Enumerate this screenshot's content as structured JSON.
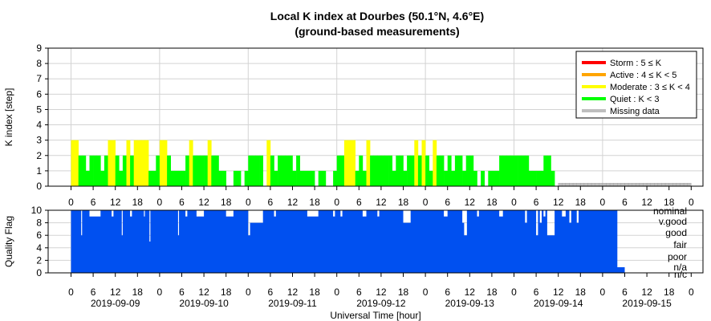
{
  "chart_data": [
    {
      "type": "bar",
      "title": "Local K index at Dourbes (50.1°N, 4.6°E)",
      "subtitle": "(ground-based measurements)",
      "ylabel": "K index [step]",
      "ylim": [
        0,
        9
      ],
      "yticks": [
        "0",
        "1",
        "2",
        "3",
        "4",
        "5",
        "6",
        "7",
        "8",
        "9"
      ],
      "x_tick_labels": [
        "0",
        "6",
        "12",
        "18"
      ],
      "grid": true,
      "legend": {
        "placement": "top-right",
        "entries": [
          {
            "label": "Storm : 5 ≤ K",
            "color": "#ff0000"
          },
          {
            "label": "Active : 4 ≤ K < 5",
            "color": "#ffa500"
          },
          {
            "label": "Moderate : 3 ≤ K < 4",
            "color": "#ffff00"
          },
          {
            "label": "Quiet : K < 3",
            "color": "#00ff00"
          },
          {
            "label": "Missing data",
            "color": "#bebebe"
          }
        ]
      },
      "bar_width_hours": 1,
      "series": [
        {
          "name": "K index",
          "start": "2019-09-09 00:00",
          "values": [
            3,
            3,
            2,
            2,
            1,
            2,
            2,
            2,
            1,
            2,
            3,
            3,
            2,
            1,
            2,
            3,
            2,
            3,
            3,
            3,
            3,
            1,
            1,
            2,
            3,
            3,
            2,
            1,
            1,
            1,
            1,
            2,
            3,
            2,
            2,
            2,
            2,
            3,
            2,
            2,
            1,
            1,
            0,
            0,
            1,
            1,
            0,
            1,
            2,
            2,
            2,
            2,
            0,
            3,
            2,
            1,
            2,
            2,
            2,
            2,
            1,
            2,
            1,
            1,
            1,
            1,
            0,
            1,
            1,
            0,
            0,
            1,
            2,
            2,
            3,
            3,
            3,
            1,
            2,
            1,
            3,
            2,
            2,
            2,
            2,
            2,
            2,
            1,
            2,
            2,
            1,
            2,
            2,
            3,
            2,
            3,
            2,
            1,
            3,
            2,
            2,
            1,
            2,
            1,
            2,
            2,
            1,
            2,
            2,
            1,
            0,
            1,
            0,
            1,
            1,
            1,
            2,
            2,
            2,
            2,
            2,
            2,
            2,
            2,
            1,
            1,
            1,
            1,
            2,
            2,
            1
          ]
        }
      ],
      "missing": {
        "label": "Missing data",
        "from": "2019-09-14 12:00",
        "to": "2019-09-15 24:00",
        "value": 0.2
      }
    },
    {
      "type": "area",
      "ylabel": "Quality Flag",
      "ylim": [
        0,
        10
      ],
      "yticks": [
        "0",
        "2",
        "4",
        "6",
        "8",
        "10"
      ],
      "xlabel": "Universal Time [hour]",
      "x_tick_labels": [
        "0",
        "6",
        "12",
        "18"
      ],
      "date_labels": [
        "2019-09-09",
        "2019-09-10",
        "2019-09-11",
        "2019-09-12",
        "2019-09-13",
        "2019-09-14",
        "2019-09-15"
      ],
      "quality_labels": [
        "nominal",
        "v.good",
        "good",
        "fair",
        "poor",
        "n/a",
        "n/c"
      ],
      "grid": true,
      "fill_color": "#0050f0",
      "resolution": "15 min",
      "start": "2019-09-09 00:00",
      "end_of_data": "2019-09-15 04:00",
      "value_before_dips": 10,
      "after_end_value": 0.9,
      "dips": [
        {
          "from": "2019-09-09 02:45",
          "to": "2019-09-09 03:00",
          "value": 6
        },
        {
          "from": "2019-09-09 05:00",
          "to": "2019-09-09 08:00",
          "value": 9
        },
        {
          "from": "2019-09-09 11:00",
          "to": "2019-09-09 11:30",
          "value": 9
        },
        {
          "from": "2019-09-09 13:45",
          "to": "2019-09-09 14:00",
          "value": 6
        },
        {
          "from": "2019-09-09 16:00",
          "to": "2019-09-09 16:30",
          "value": 9
        },
        {
          "from": "2019-09-09 19:45",
          "to": "2019-09-09 20:00",
          "value": 9
        },
        {
          "from": "2019-09-09 21:15",
          "to": "2019-09-09 21:30",
          "value": 5
        },
        {
          "from": "2019-09-10 05:00",
          "to": "2019-09-10 05:15",
          "value": 6
        },
        {
          "from": "2019-09-10 07:00",
          "to": "2019-09-10 07:30",
          "value": 9
        },
        {
          "from": "2019-09-10 10:00",
          "to": "2019-09-10 12:00",
          "value": 9
        },
        {
          "from": "2019-09-10 18:00",
          "to": "2019-09-10 20:00",
          "value": 9
        },
        {
          "from": "2019-09-11 00:00",
          "to": "2019-09-11 00:30",
          "value": 6
        },
        {
          "from": "2019-09-11 00:30",
          "to": "2019-09-11 04:00",
          "value": 8
        },
        {
          "from": "2019-09-11 07:00",
          "to": "2019-09-11 07:30",
          "value": 9
        },
        {
          "from": "2019-09-11 16:00",
          "to": "2019-09-11 19:00",
          "value": 9
        },
        {
          "from": "2019-09-11 23:00",
          "to": "2019-09-11 23:30",
          "value": 9
        },
        {
          "from": "2019-09-12 01:00",
          "to": "2019-09-12 01:30",
          "value": 9
        },
        {
          "from": "2019-09-12 07:00",
          "to": "2019-09-12 08:00",
          "value": 9
        },
        {
          "from": "2019-09-12 11:00",
          "to": "2019-09-12 11:30",
          "value": 9
        },
        {
          "from": "2019-09-12 18:00",
          "to": "2019-09-12 20:00",
          "value": 8
        },
        {
          "from": "2019-09-13 05:00",
          "to": "2019-09-13 06:00",
          "value": 9
        },
        {
          "from": "2019-09-13 10:00",
          "to": "2019-09-13 10:30",
          "value": 8
        },
        {
          "from": "2019-09-13 10:30",
          "to": "2019-09-13 11:00",
          "value": 6
        },
        {
          "from": "2019-09-13 11:00",
          "to": "2019-09-13 11:15",
          "value": 6
        },
        {
          "from": "2019-09-13 14:00",
          "to": "2019-09-13 14:30",
          "value": 9
        },
        {
          "from": "2019-09-13 20:00",
          "to": "2019-09-13 21:00",
          "value": 9
        },
        {
          "from": "2019-09-14 03:00",
          "to": "2019-09-14 03:30",
          "value": 8
        },
        {
          "from": "2019-09-14 06:00",
          "to": "2019-09-14 06:30",
          "value": 6
        },
        {
          "from": "2019-09-14 07:00",
          "to": "2019-09-14 07:30",
          "value": 8
        },
        {
          "from": "2019-09-14 08:00",
          "to": "2019-09-14 08:30",
          "value": 9
        },
        {
          "from": "2019-09-14 09:00",
          "to": "2019-09-14 10:00",
          "value": 6
        },
        {
          "from": "2019-09-14 10:00",
          "to": "2019-09-14 11:00",
          "value": 6
        },
        {
          "from": "2019-09-14 13:00",
          "to": "2019-09-14 14:00",
          "value": 9
        },
        {
          "from": "2019-09-14 15:00",
          "to": "2019-09-14 15:30",
          "value": 8
        },
        {
          "from": "2019-09-14 17:00",
          "to": "2019-09-14 17:30",
          "value": 8
        }
      ]
    }
  ]
}
